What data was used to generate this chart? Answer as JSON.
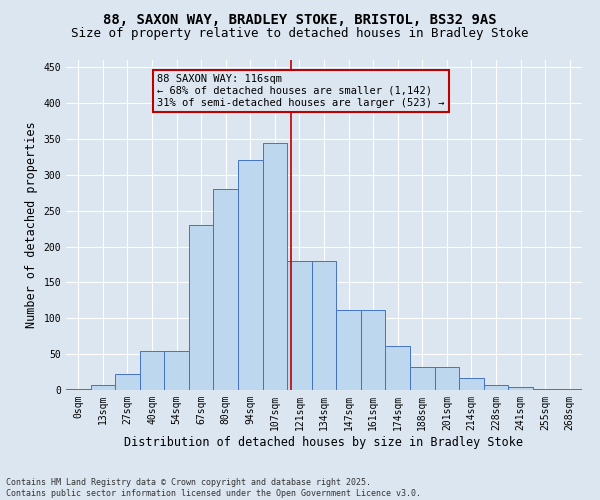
{
  "title1": "88, SAXON WAY, BRADLEY STOKE, BRISTOL, BS32 9AS",
  "title2": "Size of property relative to detached houses in Bradley Stoke",
  "xlabel": "Distribution of detached houses by size in Bradley Stoke",
  "ylabel": "Number of detached properties",
  "footnote": "Contains HM Land Registry data © Crown copyright and database right 2025.\nContains public sector information licensed under the Open Government Licence v3.0.",
  "bar_labels": [
    "0sqm",
    "13sqm",
    "27sqm",
    "40sqm",
    "54sqm",
    "67sqm",
    "80sqm",
    "94sqm",
    "107sqm",
    "121sqm",
    "134sqm",
    "147sqm",
    "161sqm",
    "174sqm",
    "188sqm",
    "201sqm",
    "214sqm",
    "228sqm",
    "241sqm",
    "255sqm",
    "268sqm"
  ],
  "bar_values": [
    2,
    7,
    22,
    55,
    55,
    230,
    280,
    320,
    345,
    180,
    180,
    112,
    112,
    62,
    32,
    32,
    17,
    7,
    4,
    2,
    1
  ],
  "bar_color": "#bdd7ee",
  "bar_edge_color": "#4472c4",
  "bg_color": "#dce6f1",
  "grid_color": "#ffffff",
  "vline_position": 8.65,
  "vline_color": "#c00000",
  "annotation_text": "88 SAXON WAY: 116sqm\n← 68% of detached houses are smaller (1,142)\n31% of semi-detached houses are larger (523) →",
  "annotation_box_color": "#c00000",
  "ylim": [
    0,
    460
  ],
  "yticks": [
    0,
    50,
    100,
    150,
    200,
    250,
    300,
    350,
    400,
    450
  ],
  "title_fontsize": 10,
  "subtitle_fontsize": 9,
  "annotation_fontsize": 7.5,
  "tick_fontsize": 7,
  "xlabel_fontsize": 8.5,
  "ylabel_fontsize": 8.5,
  "footnote_fontsize": 6
}
